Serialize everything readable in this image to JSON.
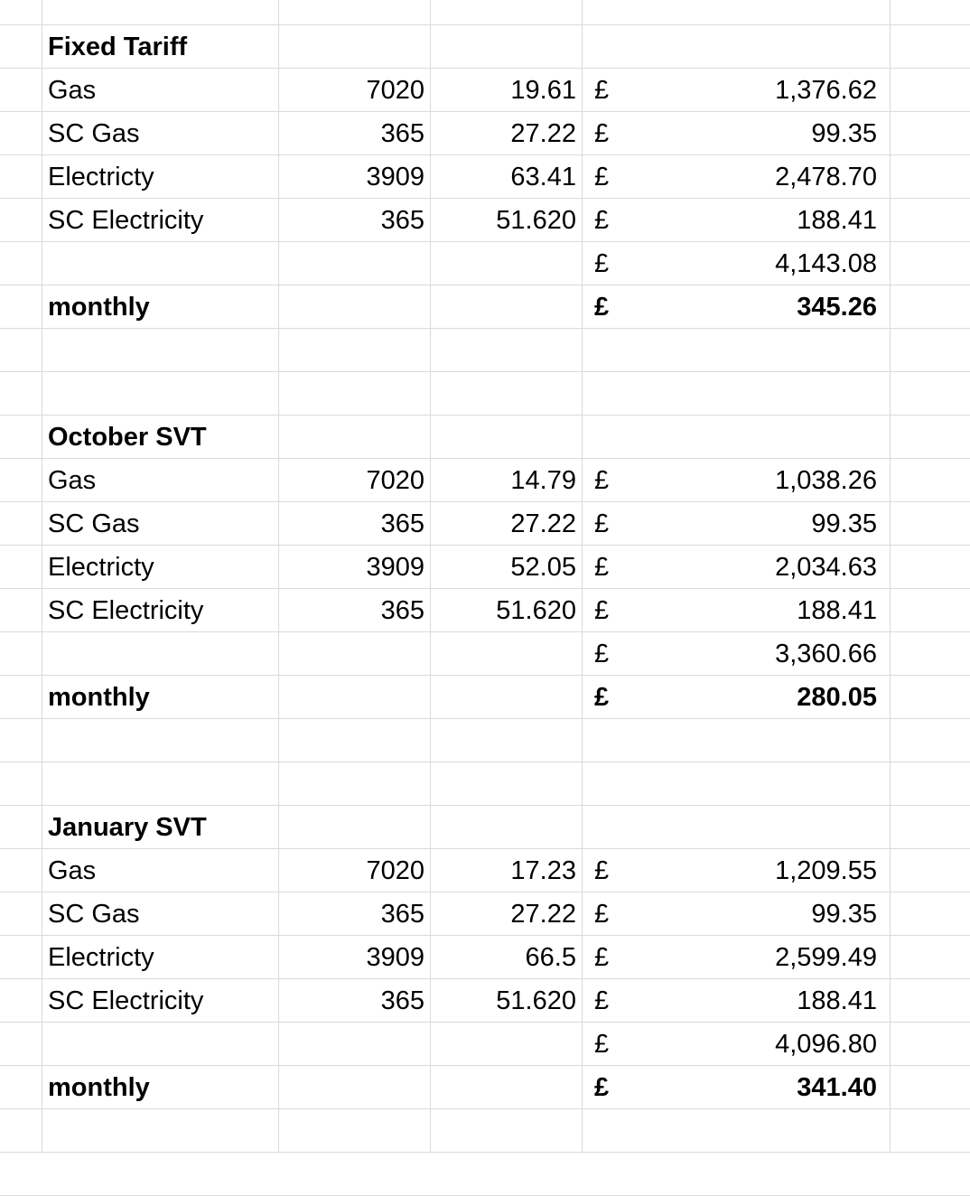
{
  "sections": [
    {
      "title": "Fixed Tariff",
      "rows": [
        {
          "label": "Gas",
          "qty": "7020",
          "rate": "19.61",
          "currency": "£",
          "amount": "1,376.62"
        },
        {
          "label": "SC Gas",
          "qty": "365",
          "rate": "27.22",
          "currency": "£",
          "amount": "99.35"
        },
        {
          "label": "Electricty",
          "qty": "3909",
          "rate": "63.41",
          "currency": "£",
          "amount": "2,478.70"
        },
        {
          "label": "SC Electricity",
          "qty": "365",
          "rate": "51.620",
          "currency": "£",
          "amount": "188.41"
        }
      ],
      "total": {
        "currency": "£",
        "amount": "4,143.08"
      },
      "monthly": {
        "label": "monthly",
        "currency": "£",
        "amount": "345.26"
      }
    },
    {
      "title": "October SVT",
      "rows": [
        {
          "label": "Gas",
          "qty": "7020",
          "rate": "14.79",
          "currency": "£",
          "amount": "1,038.26"
        },
        {
          "label": "SC Gas",
          "qty": "365",
          "rate": "27.22",
          "currency": "£",
          "amount": "99.35"
        },
        {
          "label": "Electricty",
          "qty": "3909",
          "rate": "52.05",
          "currency": "£",
          "amount": "2,034.63"
        },
        {
          "label": "SC Electricity",
          "qty": "365",
          "rate": "51.620",
          "currency": "£",
          "amount": "188.41"
        }
      ],
      "total": {
        "currency": "£",
        "amount": "3,360.66"
      },
      "monthly": {
        "label": "monthly",
        "currency": "£",
        "amount": "280.05"
      }
    },
    {
      "title": "January SVT",
      "rows": [
        {
          "label": "Gas",
          "qty": "7020",
          "rate": "17.23",
          "currency": "£",
          "amount": "1,209.55"
        },
        {
          "label": "SC Gas",
          "qty": "365",
          "rate": "27.22",
          "currency": "£",
          "amount": "99.35"
        },
        {
          "label": "Electricty",
          "qty": "3909",
          "rate": "66.5",
          "currency": "£",
          "amount": "2,599.49"
        },
        {
          "label": "SC Electricity",
          "qty": "365",
          "rate": "51.620",
          "currency": "£",
          "amount": "188.41"
        }
      ],
      "total": {
        "currency": "£",
        "amount": "4,096.80"
      },
      "monthly": {
        "label": "monthly",
        "currency": "£",
        "amount": "341.40"
      }
    }
  ]
}
